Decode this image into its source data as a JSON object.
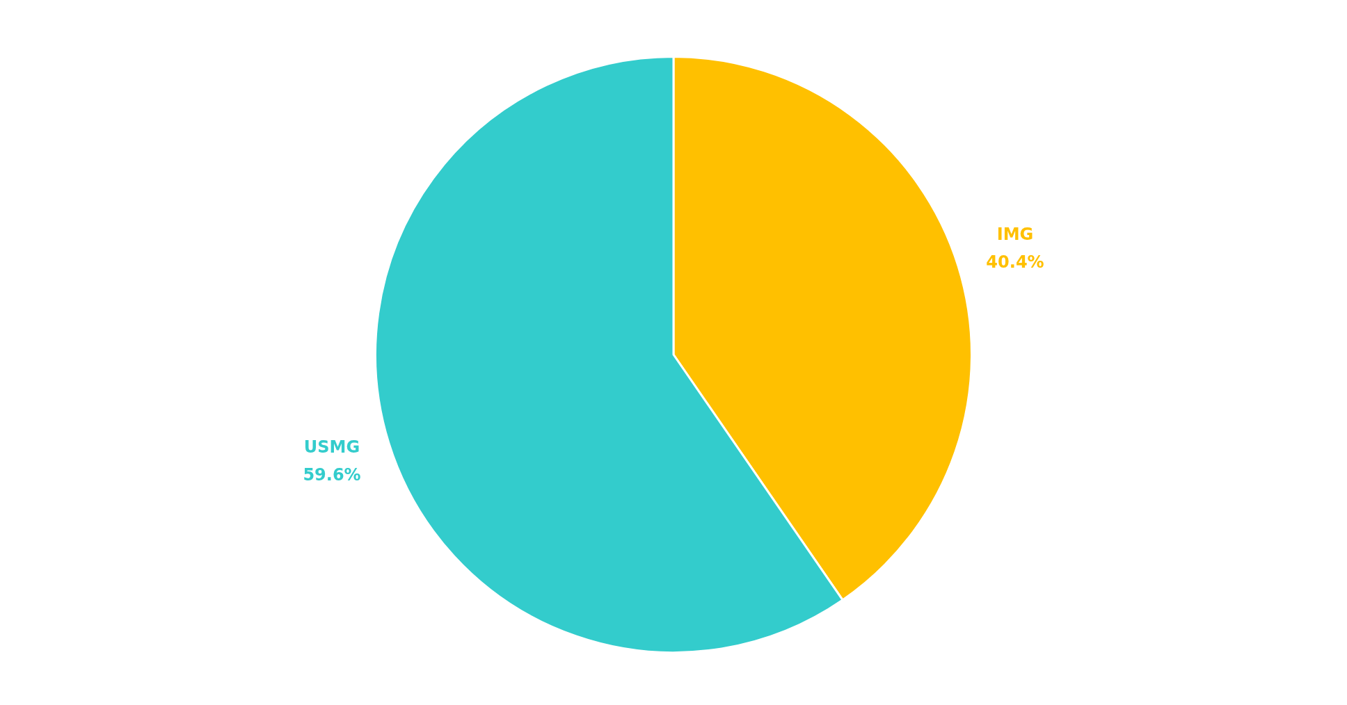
{
  "chart_data": {
    "type": "pie",
    "categories": [
      "IMG",
      "USMG"
    ],
    "values": [
      40.4,
      59.6
    ],
    "colors": [
      "#ffc000",
      "#33cccc"
    ],
    "value_labels": [
      "40.4%",
      "59.6%"
    ],
    "legend": false
  }
}
